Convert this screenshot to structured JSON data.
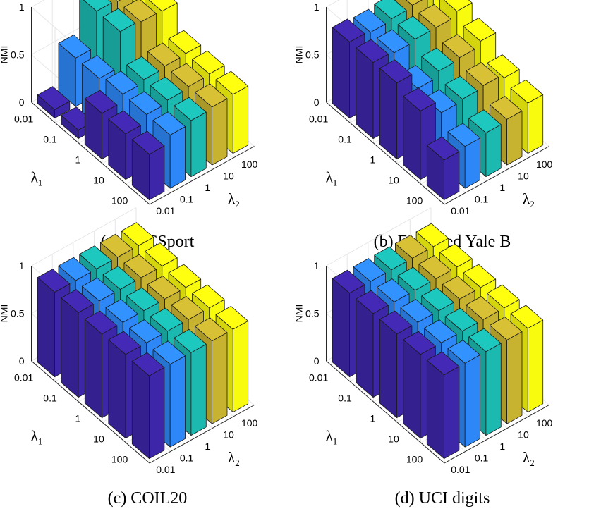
{
  "chart_data": [
    {
      "type": "bar3d",
      "caption": "(a) BBCSport",
      "zlabel": "NMI",
      "zlim": [
        0,
        1
      ],
      "zticks": [
        "0",
        "0.5",
        "1"
      ],
      "x_label": "λ1",
      "y_label": "λ2",
      "x_name": "λ",
      "x_sub": "1",
      "y_name": "λ",
      "y_sub": "2",
      "lambda1_ticks": [
        "0.01",
        "0.1",
        "1",
        "10",
        "100"
      ],
      "lambda2_ticks": [
        "0.01",
        "0.1",
        "1",
        "10",
        "100"
      ],
      "column_colors": [
        "#3e26a8",
        "#2e87f7",
        "#1bb9b0",
        "#c8b330",
        "#f9fb0e"
      ],
      "values": [
        [
          0.09,
          0.51,
          0.88,
          0.86,
          0.85
        ],
        [
          0.09,
          0.51,
          0.88,
          0.86,
          0.85
        ],
        [
          0.48,
          0.56,
          0.59,
          0.61,
          0.62
        ],
        [
          0.48,
          0.56,
          0.59,
          0.61,
          0.62
        ],
        [
          0.48,
          0.56,
          0.59,
          0.61,
          0.62
        ]
      ]
    },
    {
      "type": "bar3d",
      "caption": "(b) Extended Yale B",
      "zlabel": "NMI",
      "zlim": [
        0,
        1
      ],
      "zticks": [
        "0",
        "0.5",
        "1"
      ],
      "x_label": "λ1",
      "y_label": "λ2",
      "x_name": "λ",
      "x_sub": "1",
      "y_name": "λ",
      "y_sub": "2",
      "lambda1_ticks": [
        "0.01",
        "0.1",
        "1",
        "10",
        "100"
      ],
      "lambda2_ticks": [
        "0.01",
        "0.1",
        "1",
        "10",
        "100"
      ],
      "column_colors": [
        "#3e26a8",
        "#2e87f7",
        "#1bb9b0",
        "#c8b330",
        "#f9fb0e"
      ],
      "values": [
        [
          0.8,
          0.78,
          0.8,
          0.82,
          0.95
        ],
        [
          0.8,
          0.78,
          0.8,
          0.8,
          0.85
        ],
        [
          0.8,
          0.62,
          0.68,
          0.7,
          0.75
        ],
        [
          0.72,
          0.58,
          0.6,
          0.62,
          0.58
        ],
        [
          0.42,
          0.44,
          0.46,
          0.48,
          0.53
        ]
      ]
    },
    {
      "type": "bar3d",
      "caption": "(c) COIL20",
      "zlabel": "NMI",
      "zlim": [
        0,
        1
      ],
      "zticks": [
        "0",
        "0.5",
        "1"
      ],
      "x_label": "λ1",
      "y_label": "λ2",
      "x_name": "λ",
      "x_sub": "1",
      "y_name": "λ",
      "y_sub": "2",
      "lambda1_ticks": [
        "0.01",
        "0.1",
        "1",
        "10",
        "100"
      ],
      "lambda2_ticks": [
        "0.01",
        "0.1",
        "1",
        "10",
        "100"
      ],
      "column_colors": [
        "#3e26a8",
        "#2e87f7",
        "#1bb9b0",
        "#c8b330",
        "#f9fb0e"
      ],
      "values": [
        [
          0.89,
          0.89,
          0.89,
          0.89,
          0.89
        ],
        [
          0.89,
          0.89,
          0.89,
          0.89,
          0.89
        ],
        [
          0.88,
          0.88,
          0.88,
          0.88,
          0.88
        ],
        [
          0.88,
          0.88,
          0.88,
          0.88,
          0.88
        ],
        [
          0.87,
          0.87,
          0.87,
          0.87,
          0.87
        ]
      ]
    },
    {
      "type": "bar3d",
      "caption": "(d) UCI digits",
      "zlabel": "NMI",
      "zlim": [
        0,
        1
      ],
      "zticks": [
        "0",
        "0.5",
        "1"
      ],
      "x_label": "λ1",
      "y_label": "λ2",
      "x_name": "λ",
      "x_sub": "1",
      "y_name": "λ",
      "y_sub": "2",
      "lambda1_ticks": [
        "0.01",
        "0.1",
        "1",
        "10",
        "100"
      ],
      "lambda2_ticks": [
        "0.01",
        "0.1",
        "1",
        "10",
        "100"
      ],
      "column_colors": [
        "#3e26a8",
        "#2e87f7",
        "#1bb9b0",
        "#c8b330",
        "#f9fb0e"
      ],
      "values": [
        [
          0.88,
          0.88,
          0.88,
          0.88,
          0.88
        ],
        [
          0.88,
          0.88,
          0.88,
          0.88,
          0.88
        ],
        [
          0.88,
          0.88,
          0.88,
          0.88,
          0.88
        ],
        [
          0.88,
          0.88,
          0.88,
          0.88,
          0.88
        ],
        [
          0.88,
          0.88,
          0.88,
          0.88,
          0.88
        ]
      ]
    }
  ]
}
